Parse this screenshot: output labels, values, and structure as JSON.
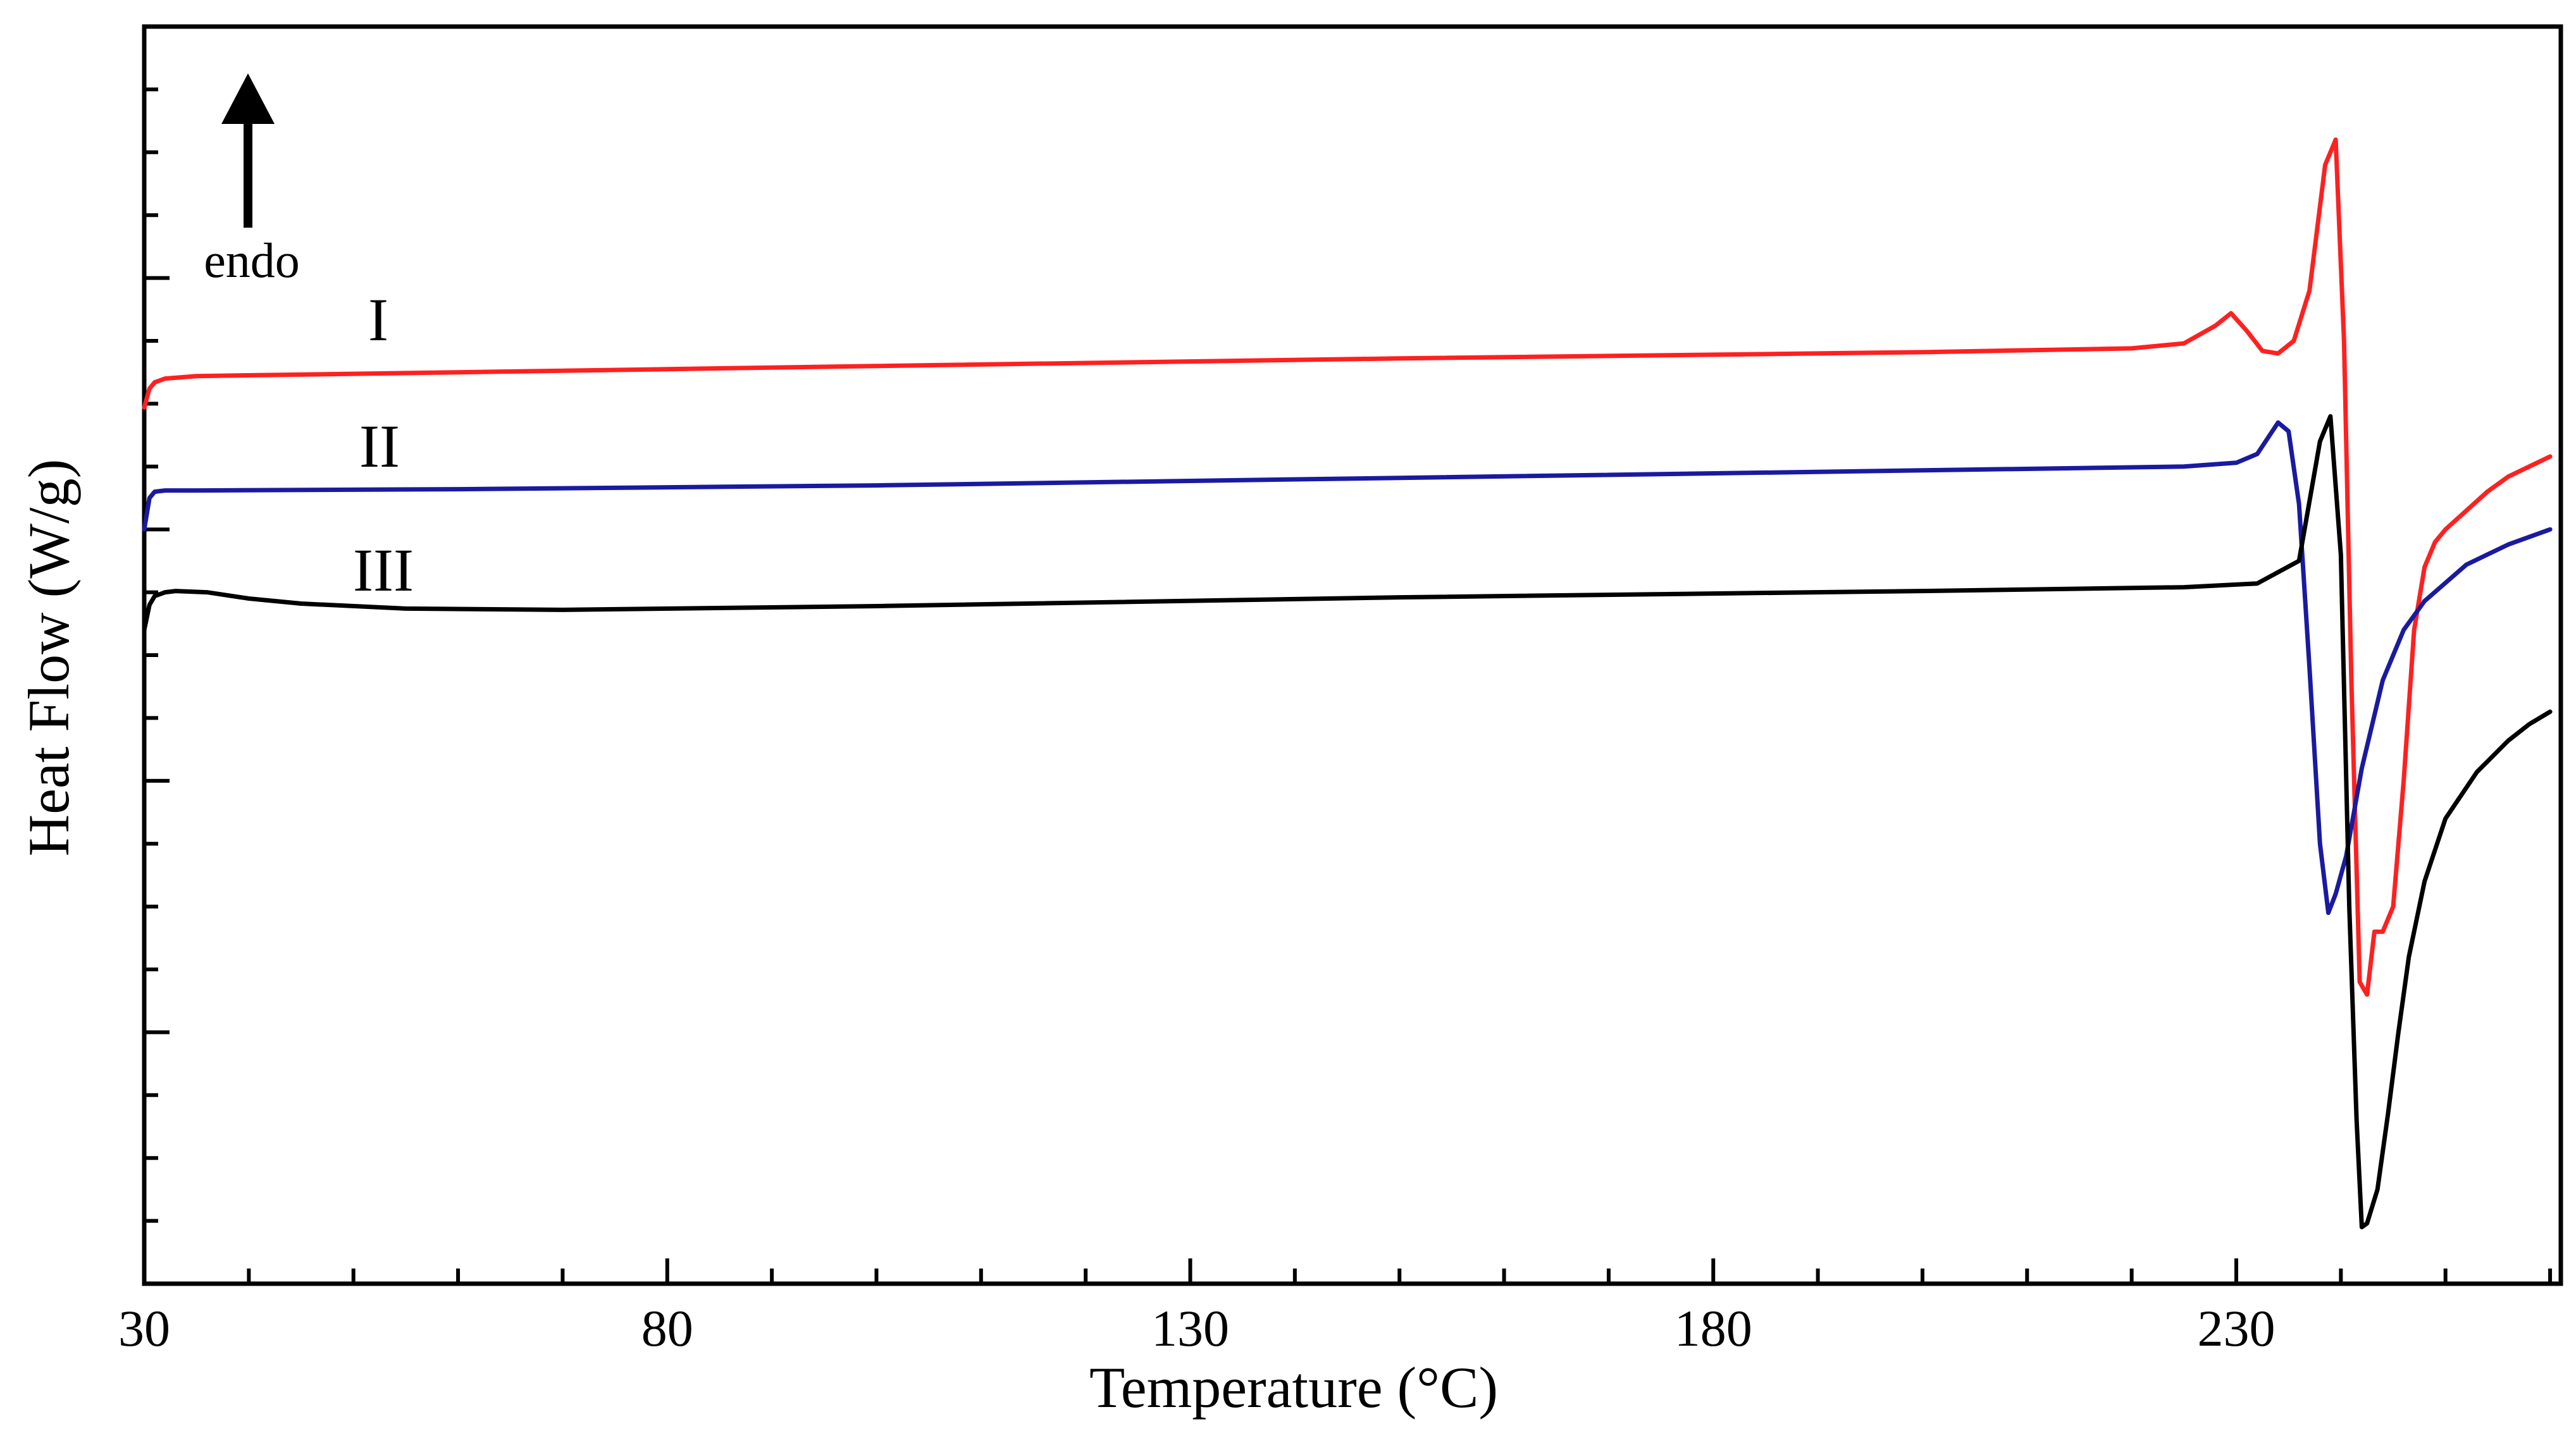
{
  "chart_data": {
    "type": "line",
    "xlabel": "Temperature (°C)",
    "ylabel": "Heat Flow (W/g)",
    "xlim": [
      30,
      260
    ],
    "x_ticks": [
      "30",
      "80",
      "130",
      "180",
      "230"
    ],
    "x_tick_values": [
      30,
      80,
      130,
      180,
      230
    ],
    "ylim": [
      0,
      10
    ],
    "grid": false,
    "legend": "none",
    "annotation": "endo",
    "series": [
      {
        "name": "I",
        "color": "#ff2020",
        "x": [
          30,
          30.5,
          31,
          32,
          35,
          60,
          100,
          150,
          200,
          220,
          225,
          228,
          229.5,
          231,
          232.5,
          234,
          235.5,
          237,
          238.5,
          239.5,
          240.3,
          241,
          241.8,
          242.5,
          243.2,
          244,
          245,
          246,
          247,
          248,
          249,
          250,
          252,
          254,
          256,
          258,
          260
        ],
        "y": [
          6.97,
          7.12,
          7.17,
          7.2,
          7.22,
          7.25,
          7.3,
          7.36,
          7.41,
          7.44,
          7.48,
          7.62,
          7.72,
          7.58,
          7.42,
          7.4,
          7.5,
          7.9,
          8.9,
          9.1,
          7.5,
          4.8,
          2.4,
          2.3,
          2.8,
          2.8,
          3.0,
          4.0,
          5.2,
          5.7,
          5.9,
          6.0,
          6.15,
          6.3,
          6.42,
          6.5,
          6.58
        ]
      },
      {
        "name": "II",
        "color": "#1a1aa0",
        "x": [
          30,
          30.5,
          31,
          32,
          35,
          60,
          100,
          150,
          200,
          225,
          230,
          232,
          234,
          235,
          236,
          237,
          238,
          238.8,
          239.5,
          240.5,
          242,
          244,
          246,
          248,
          252,
          256,
          260
        ],
        "y": [
          6.0,
          6.25,
          6.3,
          6.31,
          6.31,
          6.32,
          6.35,
          6.41,
          6.47,
          6.5,
          6.53,
          6.6,
          6.85,
          6.78,
          6.2,
          4.9,
          3.5,
          2.95,
          3.1,
          3.4,
          4.1,
          4.8,
          5.2,
          5.43,
          5.72,
          5.88,
          6.0
        ]
      },
      {
        "name": "III",
        "color": "#000000",
        "x": [
          30,
          30.5,
          31,
          32,
          33,
          36,
          40,
          45,
          55,
          70,
          100,
          150,
          200,
          225,
          232,
          236,
          238,
          239,
          240,
          240.8,
          241.5,
          242,
          242.5,
          243.5,
          244.5,
          245.5,
          246.5,
          248,
          250,
          253,
          256,
          258,
          260
        ],
        "y": [
          5.2,
          5.4,
          5.47,
          5.5,
          5.51,
          5.5,
          5.45,
          5.41,
          5.37,
          5.36,
          5.39,
          5.46,
          5.51,
          5.54,
          5.57,
          5.75,
          6.7,
          6.9,
          5.8,
          3.0,
          1.3,
          0.45,
          0.48,
          0.75,
          1.35,
          2.0,
          2.6,
          3.2,
          3.7,
          4.07,
          4.32,
          4.45,
          4.55
        ]
      }
    ]
  }
}
